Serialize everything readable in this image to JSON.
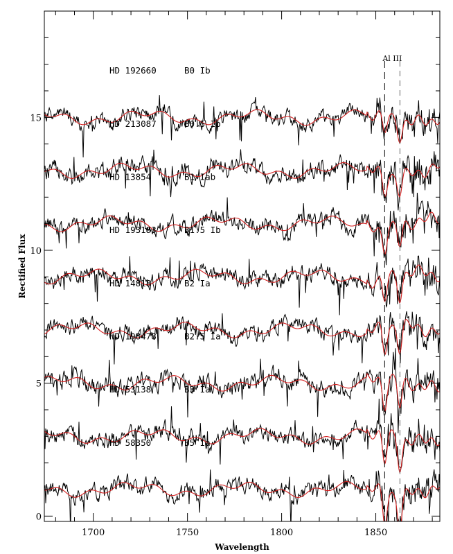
{
  "chart_data": {
    "type": "line",
    "xlabel": "Wavelength",
    "ylabel": "Rectified Flux",
    "xlim": [
      1674,
      1884
    ],
    "ylim": [
      -0.2,
      19.0
    ],
    "x_ticks": [
      1700,
      1750,
      1800,
      1850
    ],
    "y_ticks": [
      0,
      5,
      10,
      15
    ],
    "grid": false,
    "legend": "none",
    "colors": {
      "observed": "#000000",
      "model": "#d42020"
    },
    "markers": [
      {
        "label": "Al III",
        "lines": [
          1854.7,
          1862.8
        ]
      }
    ],
    "spectra": [
      {
        "star": "HD 192660",
        "sptype": "B0 Ib",
        "offset": 15,
        "noise": 0.35
      },
      {
        "star": "HD 213087",
        "sptype": "B0.5 Ib",
        "offset": 13,
        "noise": 0.45
      },
      {
        "star": "HD 13854",
        "sptype": "B1 Iab",
        "offset": 11,
        "noise": 0.4
      },
      {
        "star": "HD 193183",
        "sptype": "B1.5 Ib",
        "offset": 9,
        "noise": 0.4
      },
      {
        "star": "HD 14818",
        "sptype": "B2 Ia",
        "offset": 7,
        "noise": 0.4
      },
      {
        "star": "HD 198478",
        "sptype": "B2.5 Ia",
        "offset": 5,
        "noise": 0.45
      },
      {
        "star": "HD 53138",
        "sptype": "B3 Ia",
        "offset": 3,
        "noise": 0.4
      },
      {
        "star": "HD 58350",
        "sptype": "B5 Ia",
        "offset": 1,
        "noise": 0.4
      }
    ]
  }
}
